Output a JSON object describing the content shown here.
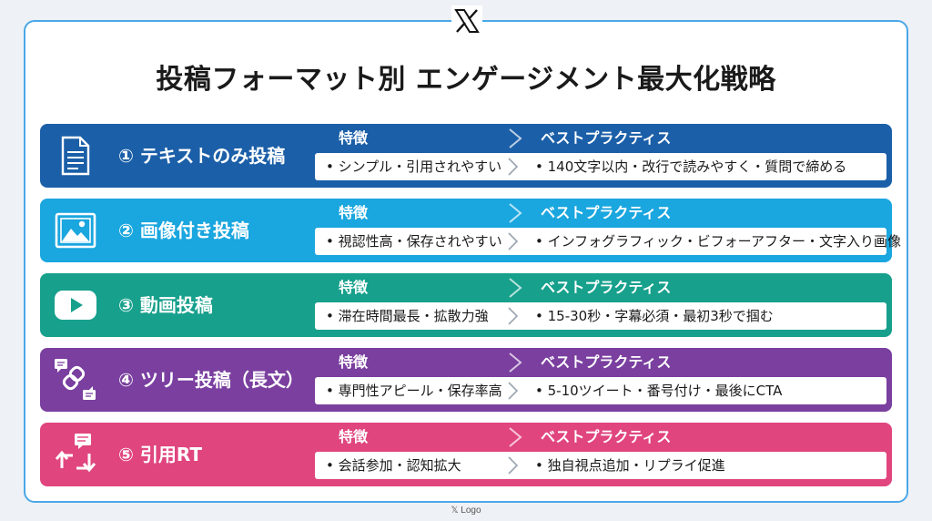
{
  "title": "投稿フォーマット別 エンゲージメント最大化戦略",
  "footer": "𝕏 Logo",
  "headers": {
    "features": "特徴",
    "best": "ベストプラクティス"
  },
  "rows": [
    {
      "name": "① テキストのみ投稿",
      "color": "#1b5fa8",
      "icon": "document-icon",
      "features": "• シンプル・引用されやすい",
      "best": "• 140文字以内・改行で読みやすく・質問で締める"
    },
    {
      "name": "② 画像付き投稿",
      "color": "#1aa6df",
      "icon": "image-icon",
      "features": "• 視認性高・保存されやすい",
      "best": "• インフォグラフィック・ビフォーアフター・文字入り画像"
    },
    {
      "name": "③ 動画投稿",
      "color": "#17a08c",
      "icon": "video-play-icon",
      "features": "• 滞在時間最長・拡散力強",
      "best": "• 15-30秒・字幕必須・最初3秒で掴む"
    },
    {
      "name": "④ ツリー投稿（長文）",
      "color": "#7a3f9f",
      "icon": "thread-link-icon",
      "features": "• 専門性アピール・保存率高",
      "best": "• 5-10ツイート・番号付け・最後にCTA"
    },
    {
      "name": "⑤ 引用RT",
      "color": "#e0457e",
      "icon": "quote-retweet-icon",
      "features": "• 会話参加・認知拡大",
      "best": "• 独自視点追加・リプライ促進"
    }
  ]
}
